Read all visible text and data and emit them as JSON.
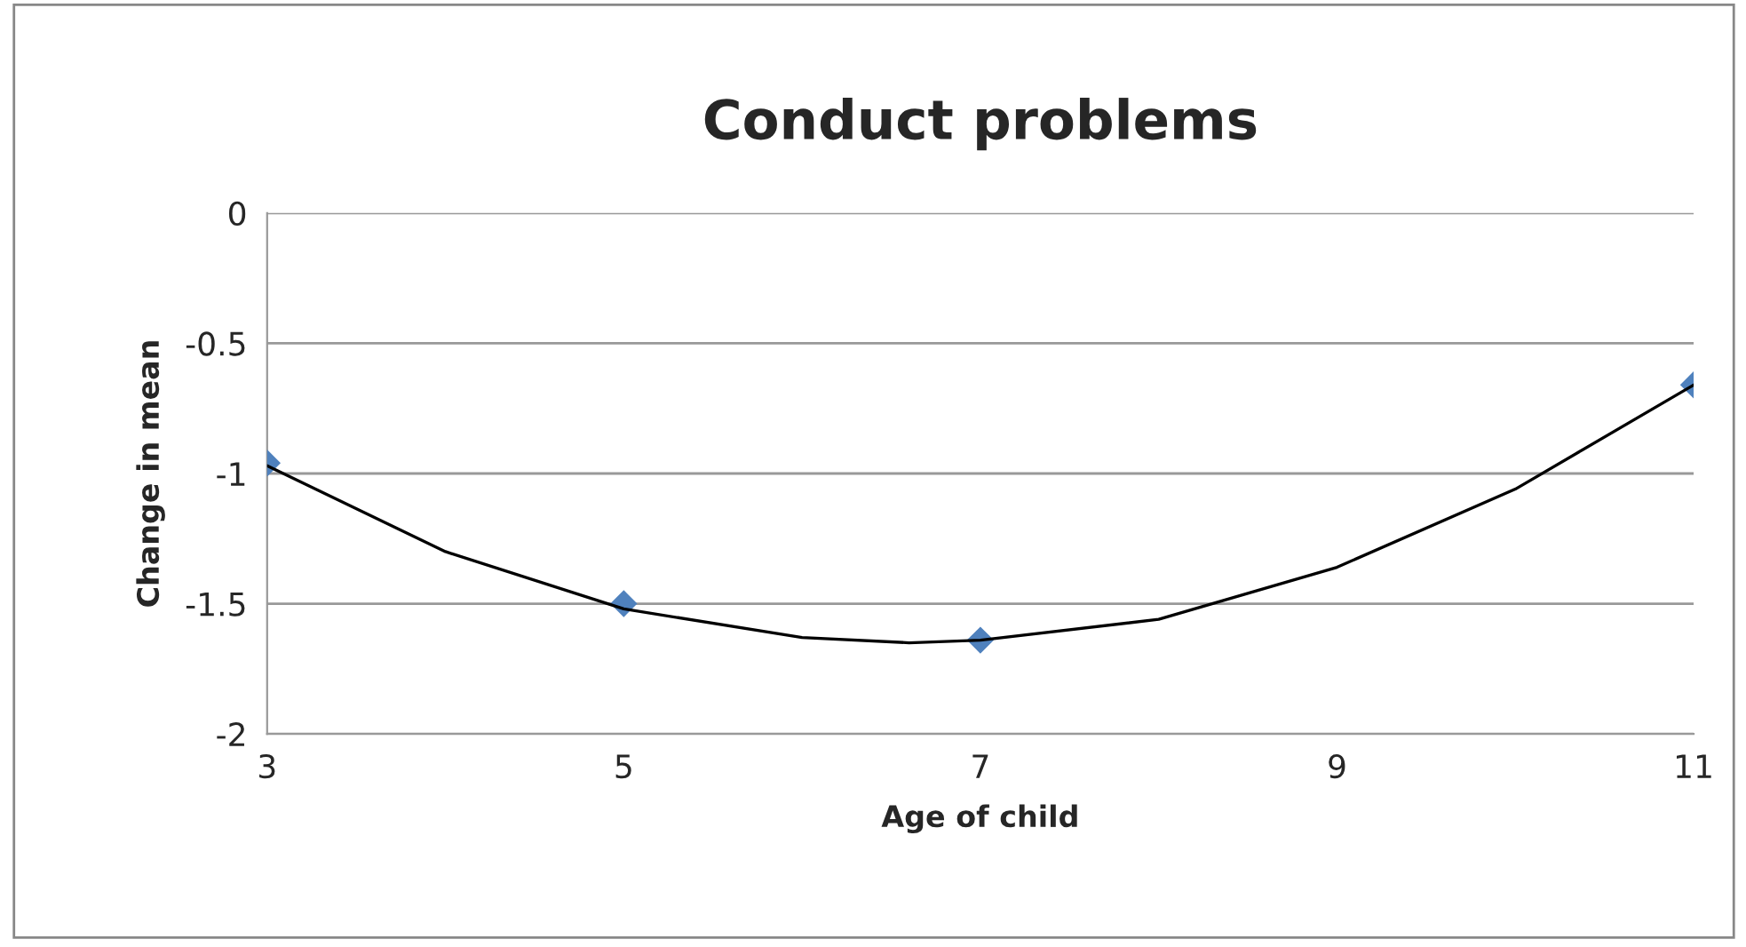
{
  "chart_data": {
    "type": "scatter",
    "title": "Conduct problems",
    "xlabel": "Age of child",
    "ylabel": "Change in mean",
    "x": [
      3,
      5,
      7,
      11
    ],
    "marker": "diamond",
    "grid": "y",
    "legend": false,
    "xlim": [
      3,
      11
    ],
    "xticks": [
      3,
      5,
      7,
      9,
      11
    ],
    "ylim": [
      -2,
      0
    ],
    "yticks": [
      -2,
      -1.5,
      -1,
      -0.5,
      0
    ],
    "series": [
      {
        "color": "#4f81bd",
        "values": [
          -0.96,
          -1.5,
          -1.64,
          -0.66
        ]
      },
      {
        "type": "line",
        "color": "#000000",
        "line_style": "solid",
        "marker": "none",
        "x": [
          3,
          4,
          5,
          6,
          6.6,
          7,
          8,
          9,
          10,
          11
        ],
        "values": [
          -0.97,
          -1.3,
          -1.52,
          -1.63,
          -1.65,
          -1.64,
          -1.56,
          -1.36,
          -1.06,
          -0.66
        ]
      }
    ]
  }
}
